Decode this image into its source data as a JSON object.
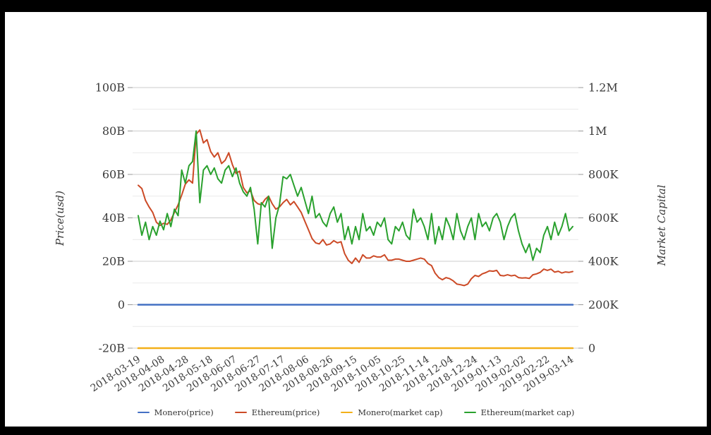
{
  "chart_data": {
    "type": "line",
    "title": "",
    "grid": {
      "horizontal_major": true,
      "horizontal_minor": true,
      "vertical": false
    },
    "legend_position": "bottom",
    "left_axis": {
      "label": "Price(usd)",
      "tick_labels": [
        "100B",
        "80B",
        "60B",
        "40B",
        "20B",
        "0",
        "-20B"
      ],
      "tick_values_B": [
        100,
        80,
        60,
        40,
        20,
        0,
        -20
      ],
      "range_B": [
        -20,
        100
      ],
      "minor_step_B": 10
    },
    "right_axis": {
      "label": "Market Capital",
      "tick_labels": [
        "1.2M",
        "1M",
        "800K",
        "600K",
        "400K",
        "200K",
        "0"
      ],
      "tick_values_K": [
        1200,
        1000,
        800,
        600,
        400,
        200,
        0
      ],
      "range_K": [
        0,
        1200
      ]
    },
    "x_axis": {
      "tick_labels": [
        "2018-03-19",
        "2018-04-08",
        "2018-04-28",
        "2018-05-18",
        "2018-06-07",
        "2018-06-27",
        "2018-07-17",
        "2018-08-06",
        "2018-08-26",
        "2018-09-15",
        "2018-10-05",
        "2018-10-25",
        "2018-11-14",
        "2018-12-04",
        "2018-12-24",
        "2019-01-13",
        "2019-02-02",
        "2019-02-22",
        "2019-03-14"
      ],
      "tick_rotation_deg": -33
    },
    "x_dates": [
      "2018-03-19",
      "2018-03-22",
      "2018-03-25",
      "2018-03-28",
      "2018-03-31",
      "2018-04-03",
      "2018-04-06",
      "2018-04-09",
      "2018-04-12",
      "2018-04-15",
      "2018-04-18",
      "2018-04-21",
      "2018-04-24",
      "2018-04-27",
      "2018-04-30",
      "2018-05-03",
      "2018-05-06",
      "2018-05-09",
      "2018-05-12",
      "2018-05-15",
      "2018-05-18",
      "2018-05-21",
      "2018-05-24",
      "2018-05-27",
      "2018-05-30",
      "2018-06-02",
      "2018-06-05",
      "2018-06-08",
      "2018-06-11",
      "2018-06-14",
      "2018-06-17",
      "2018-06-20",
      "2018-06-23",
      "2018-06-26",
      "2018-06-29",
      "2018-07-02",
      "2018-07-05",
      "2018-07-08",
      "2018-07-11",
      "2018-07-14",
      "2018-07-17",
      "2018-07-20",
      "2018-07-23",
      "2018-07-26",
      "2018-07-29",
      "2018-08-01",
      "2018-08-04",
      "2018-08-07",
      "2018-08-10",
      "2018-08-13",
      "2018-08-16",
      "2018-08-19",
      "2018-08-22",
      "2018-08-25",
      "2018-08-28",
      "2018-08-31",
      "2018-09-03",
      "2018-09-06",
      "2018-09-09",
      "2018-09-12",
      "2018-09-15",
      "2018-09-18",
      "2018-09-21",
      "2018-09-24",
      "2018-09-27",
      "2018-09-30",
      "2018-10-03",
      "2018-10-06",
      "2018-10-09",
      "2018-10-12",
      "2018-10-15",
      "2018-10-18",
      "2018-10-21",
      "2018-10-24",
      "2018-10-27",
      "2018-10-30",
      "2018-11-02",
      "2018-11-05",
      "2018-11-08",
      "2018-11-11",
      "2018-11-14",
      "2018-11-17",
      "2018-11-20",
      "2018-11-23",
      "2018-11-26",
      "2018-11-29",
      "2018-12-02",
      "2018-12-05",
      "2018-12-08",
      "2018-12-11",
      "2018-12-14",
      "2018-12-17",
      "2018-12-20",
      "2018-12-23",
      "2018-12-26",
      "2018-12-29",
      "2019-01-01",
      "2019-01-04",
      "2019-01-07",
      "2019-01-10",
      "2019-01-13",
      "2019-01-16",
      "2019-01-19",
      "2019-01-22",
      "2019-01-25",
      "2019-01-28",
      "2019-01-31",
      "2019-02-03",
      "2019-02-06",
      "2019-02-09",
      "2019-02-12",
      "2019-02-15",
      "2019-02-18",
      "2019-02-21",
      "2019-02-24",
      "2019-02-27",
      "2019-03-02",
      "2019-03-05",
      "2019-03-08",
      "2019-03-11",
      "2019-03-14"
    ],
    "series": [
      {
        "name": "Monero(price)",
        "axis": "left",
        "unit": "B",
        "color": "#4470c4",
        "flat_value": 0
      },
      {
        "name": "Ethereum(price)",
        "axis": "left",
        "unit": "B",
        "color": "#cc4a26",
        "values": [
          55,
          53.5,
          48,
          45,
          42.5,
          38,
          36.5,
          37.5,
          37,
          39,
          42.5,
          46,
          50.5,
          55.5,
          57.5,
          56,
          78.5,
          80.5,
          74.5,
          76,
          70.5,
          68,
          70,
          65,
          66.5,
          70,
          64.5,
          60.5,
          61.5,
          54,
          51.5,
          52.5,
          48,
          46.5,
          46,
          48.5,
          50,
          46.5,
          44,
          45,
          47,
          48.5,
          46,
          47.5,
          45,
          42.5,
          38.5,
          34.5,
          30.5,
          28.5,
          28,
          30,
          27.5,
          28,
          29.5,
          28.5,
          29,
          23.5,
          20.5,
          19,
          21.5,
          19.5,
          23,
          21.5,
          21.5,
          22.5,
          22,
          22,
          23,
          20.5,
          20.5,
          21,
          21,
          20.5,
          20,
          20,
          20.5,
          21,
          21.5,
          21,
          19,
          18,
          14.5,
          12.5,
          11.5,
          12.5,
          12,
          11,
          9.5,
          9.2,
          8.8,
          9.5,
          12,
          13.5,
          13,
          14.2,
          14.8,
          15.6,
          15.4,
          15.8,
          13.5,
          13.3,
          13.8,
          13.3,
          13.6,
          12.5,
          12.3,
          12.4,
          12.1,
          13.8,
          14.2,
          14.9,
          16.4,
          15.8,
          16.4,
          15,
          15.4,
          14.6,
          15.1,
          14.9,
          15.3
        ]
      },
      {
        "name": "Monero(market cap)",
        "axis": "right",
        "unit": "K",
        "color": "#f3b019",
        "flat_value": 0
      },
      {
        "name": "Ethereum(market cap)",
        "axis": "right",
        "unit": "K",
        "color": "#2aa12e",
        "values": [
          610,
          520,
          580,
          500,
          560,
          520,
          585,
          545,
          620,
          560,
          640,
          610,
          820,
          760,
          840,
          860,
          1000,
          670,
          820,
          840,
          800,
          830,
          780,
          760,
          820,
          840,
          790,
          830,
          760,
          720,
          700,
          740,
          640,
          480,
          670,
          650,
          700,
          460,
          600,
          660,
          790,
          780,
          800,
          750,
          700,
          740,
          680,
          620,
          700,
          600,
          620,
          580,
          560,
          620,
          650,
          580,
          620,
          500,
          560,
          480,
          560,
          500,
          620,
          540,
          560,
          520,
          580,
          560,
          600,
          500,
          480,
          560,
          540,
          580,
          520,
          500,
          640,
          580,
          600,
          560,
          500,
          620,
          480,
          560,
          500,
          600,
          560,
          500,
          620,
          540,
          500,
          560,
          600,
          500,
          620,
          560,
          580,
          540,
          600,
          620,
          580,
          500,
          560,
          600,
          620,
          540,
          480,
          440,
          480,
          405,
          460,
          440,
          520,
          560,
          500,
          580,
          520,
          560,
          620,
          540,
          560
        ]
      }
    ],
    "colors": {
      "grid_major": "#cccccc",
      "grid_minor": "#e9e9e9",
      "tick_mark": "#999999",
      "text": "#3b3b3b",
      "frame": "#000000",
      "background": "#ffffff"
    }
  }
}
